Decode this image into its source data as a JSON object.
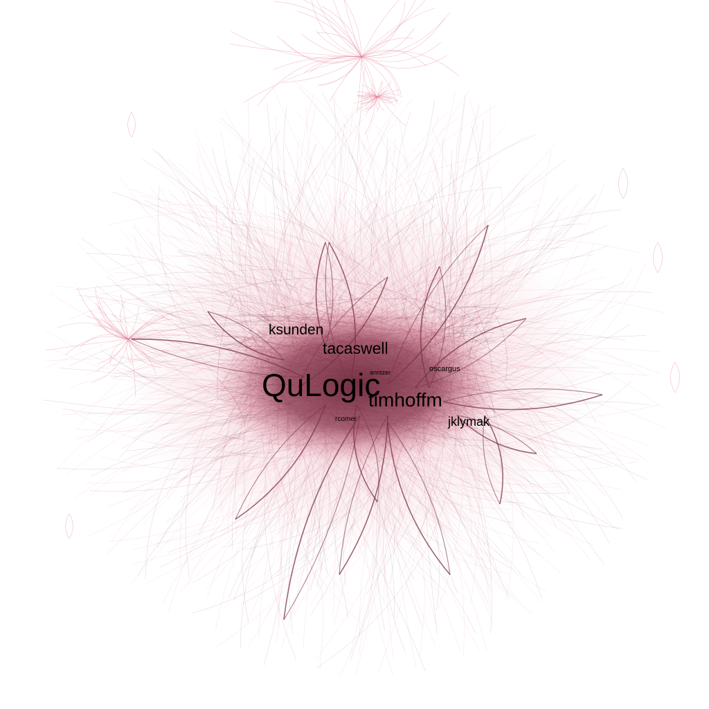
{
  "colors": {
    "background": "#ffffff",
    "edge_light": "#e07a93",
    "edge_dark": "#7a3346",
    "core": "#8a3a50",
    "label": "#000000"
  },
  "nodes": [
    {
      "id": "qulogic",
      "label": "QuLogic",
      "prominence": "largest"
    },
    {
      "id": "timhoffm",
      "label": "timhoffm",
      "prominence": "large"
    },
    {
      "id": "tacaswell",
      "label": "tacaswell",
      "prominence": "large"
    },
    {
      "id": "ksunden",
      "label": "ksunden",
      "prominence": "medium"
    },
    {
      "id": "jklymak",
      "label": "jklymak",
      "prominence": "medium"
    },
    {
      "id": "oscargus",
      "label": "oscargus",
      "prominence": "small"
    },
    {
      "id": "anntzer",
      "label": "anntzer",
      "prominence": "tiny"
    },
    {
      "id": "rcomer",
      "label": "rcomer",
      "prominence": "tiny"
    }
  ]
}
